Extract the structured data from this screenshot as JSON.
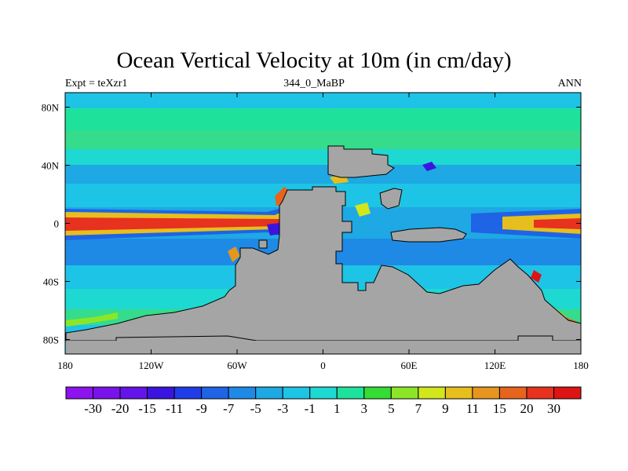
{
  "title": "Ocean Vertical Velocity at 10m (in cm/day)",
  "left_string": "Expt = teXzr1",
  "center_string": "344_0_MaBP",
  "right_string": "ANN",
  "x_axis": {
    "range": [
      -180,
      180
    ],
    "ticks": [
      {
        "value": -180,
        "label": "180"
      },
      {
        "value": -120,
        "label": "120W"
      },
      {
        "value": -60,
        "label": "60W"
      },
      {
        "value": 0,
        "label": "0"
      },
      {
        "value": 60,
        "label": "60E"
      },
      {
        "value": 120,
        "label": "120E"
      },
      {
        "value": 180,
        "label": "180"
      }
    ]
  },
  "y_axis": {
    "range": [
      -90,
      90
    ],
    "ticks": [
      {
        "value": 80,
        "label": "80N"
      },
      {
        "value": 40,
        "label": "40N"
      },
      {
        "value": 0,
        "label": "0"
      },
      {
        "value": -40,
        "label": "40S"
      },
      {
        "value": -80,
        "label": "80S"
      }
    ]
  },
  "colorbar": {
    "colors": [
      "#8c12ee",
      "#7a12ea",
      "#6414e8",
      "#3c14e0",
      "#1f3ce6",
      "#1e64e4",
      "#1e8ae6",
      "#1ea8e4",
      "#1ec4e6",
      "#1ed8d2",
      "#1ee29c",
      "#34dc34",
      "#8ce628",
      "#d2e61e",
      "#e6be1e",
      "#e6961e",
      "#e6641e",
      "#e6321e",
      "#dc1414"
    ],
    "labels": [
      "-30",
      "-20",
      "-15",
      "-11",
      "-9",
      "-7",
      "-5",
      "-3",
      "-1",
      "1",
      "3",
      "5",
      "7",
      "9",
      "11",
      "15",
      "20",
      "30"
    ]
  },
  "colors": {
    "land": "#a5a5a5",
    "background_field": "#1ec8e6",
    "upwelling_band": "#e6321e"
  }
}
